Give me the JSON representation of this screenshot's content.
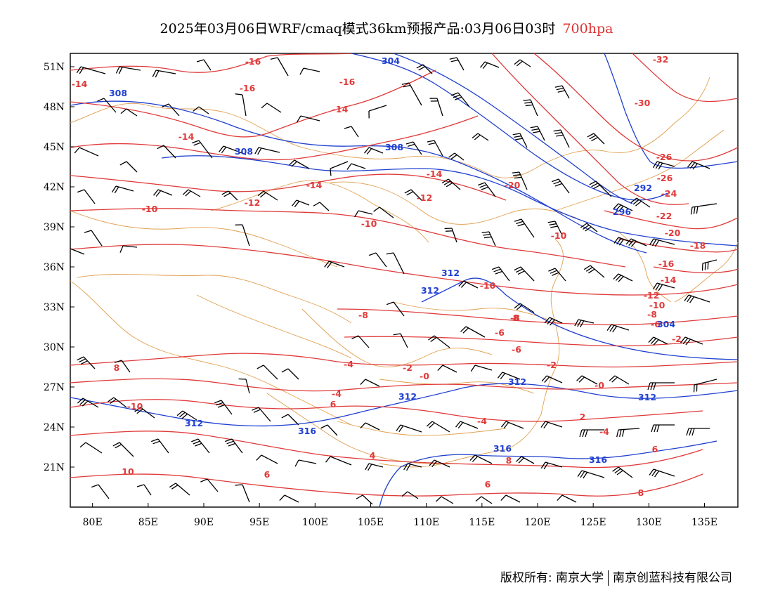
{
  "title": {
    "main": "2025年03月06日WRF/cmaq模式36km预报产品:03月06日03时",
    "level": "700hpa"
  },
  "map": {
    "lon_range": [
      78,
      138
    ],
    "lat_range": [
      18,
      52
    ],
    "x_ticks": [
      "80E",
      "85E",
      "90E",
      "95E",
      "100E",
      "105E",
      "110E",
      "115E",
      "120E",
      "125E",
      "130E",
      "135E"
    ],
    "y_ticks": [
      "51N",
      "48N",
      "45N",
      "42N",
      "39N",
      "36N",
      "33N",
      "30N",
      "27N",
      "24N",
      "21N"
    ],
    "temperature_labels": [
      "-16",
      "-16",
      "-14",
      "-16",
      "-14",
      "-32",
      "-30",
      "-14",
      "-26",
      "-14",
      "-14",
      "-20",
      "-26",
      "-12",
      "-24",
      "-10",
      "-12",
      "-22",
      "-10",
      "-20",
      "-18",
      "-10",
      "-16",
      "-10",
      "-14",
      "-12",
      "-10",
      "-8",
      "-8",
      "-8",
      "-6",
      "-6",
      "-6",
      "-4",
      "-2",
      "-4",
      "-2",
      "-2",
      "-0",
      "-0",
      "-4",
      "8",
      "-10",
      "6",
      "2",
      "-4",
      "4",
      "8",
      "6",
      "6",
      "10",
      "6",
      "8",
      "8"
    ],
    "height_labels": [
      "304",
      "308",
      "308",
      "308",
      "292",
      "296",
      "312",
      "312",
      "304",
      "312",
      "312",
      "312",
      "312",
      "316",
      "316",
      "316"
    ]
  },
  "colors": {
    "temperature": "#e03a3a",
    "geopotential_height": "#2040d0",
    "boundary": "#e0a050",
    "wind_barb": "#000000"
  },
  "icons": [
    "wind-barb"
  ],
  "credit": {
    "left": "版权所有: 南京大学",
    "right": "南京创蓝科技有限公司"
  }
}
